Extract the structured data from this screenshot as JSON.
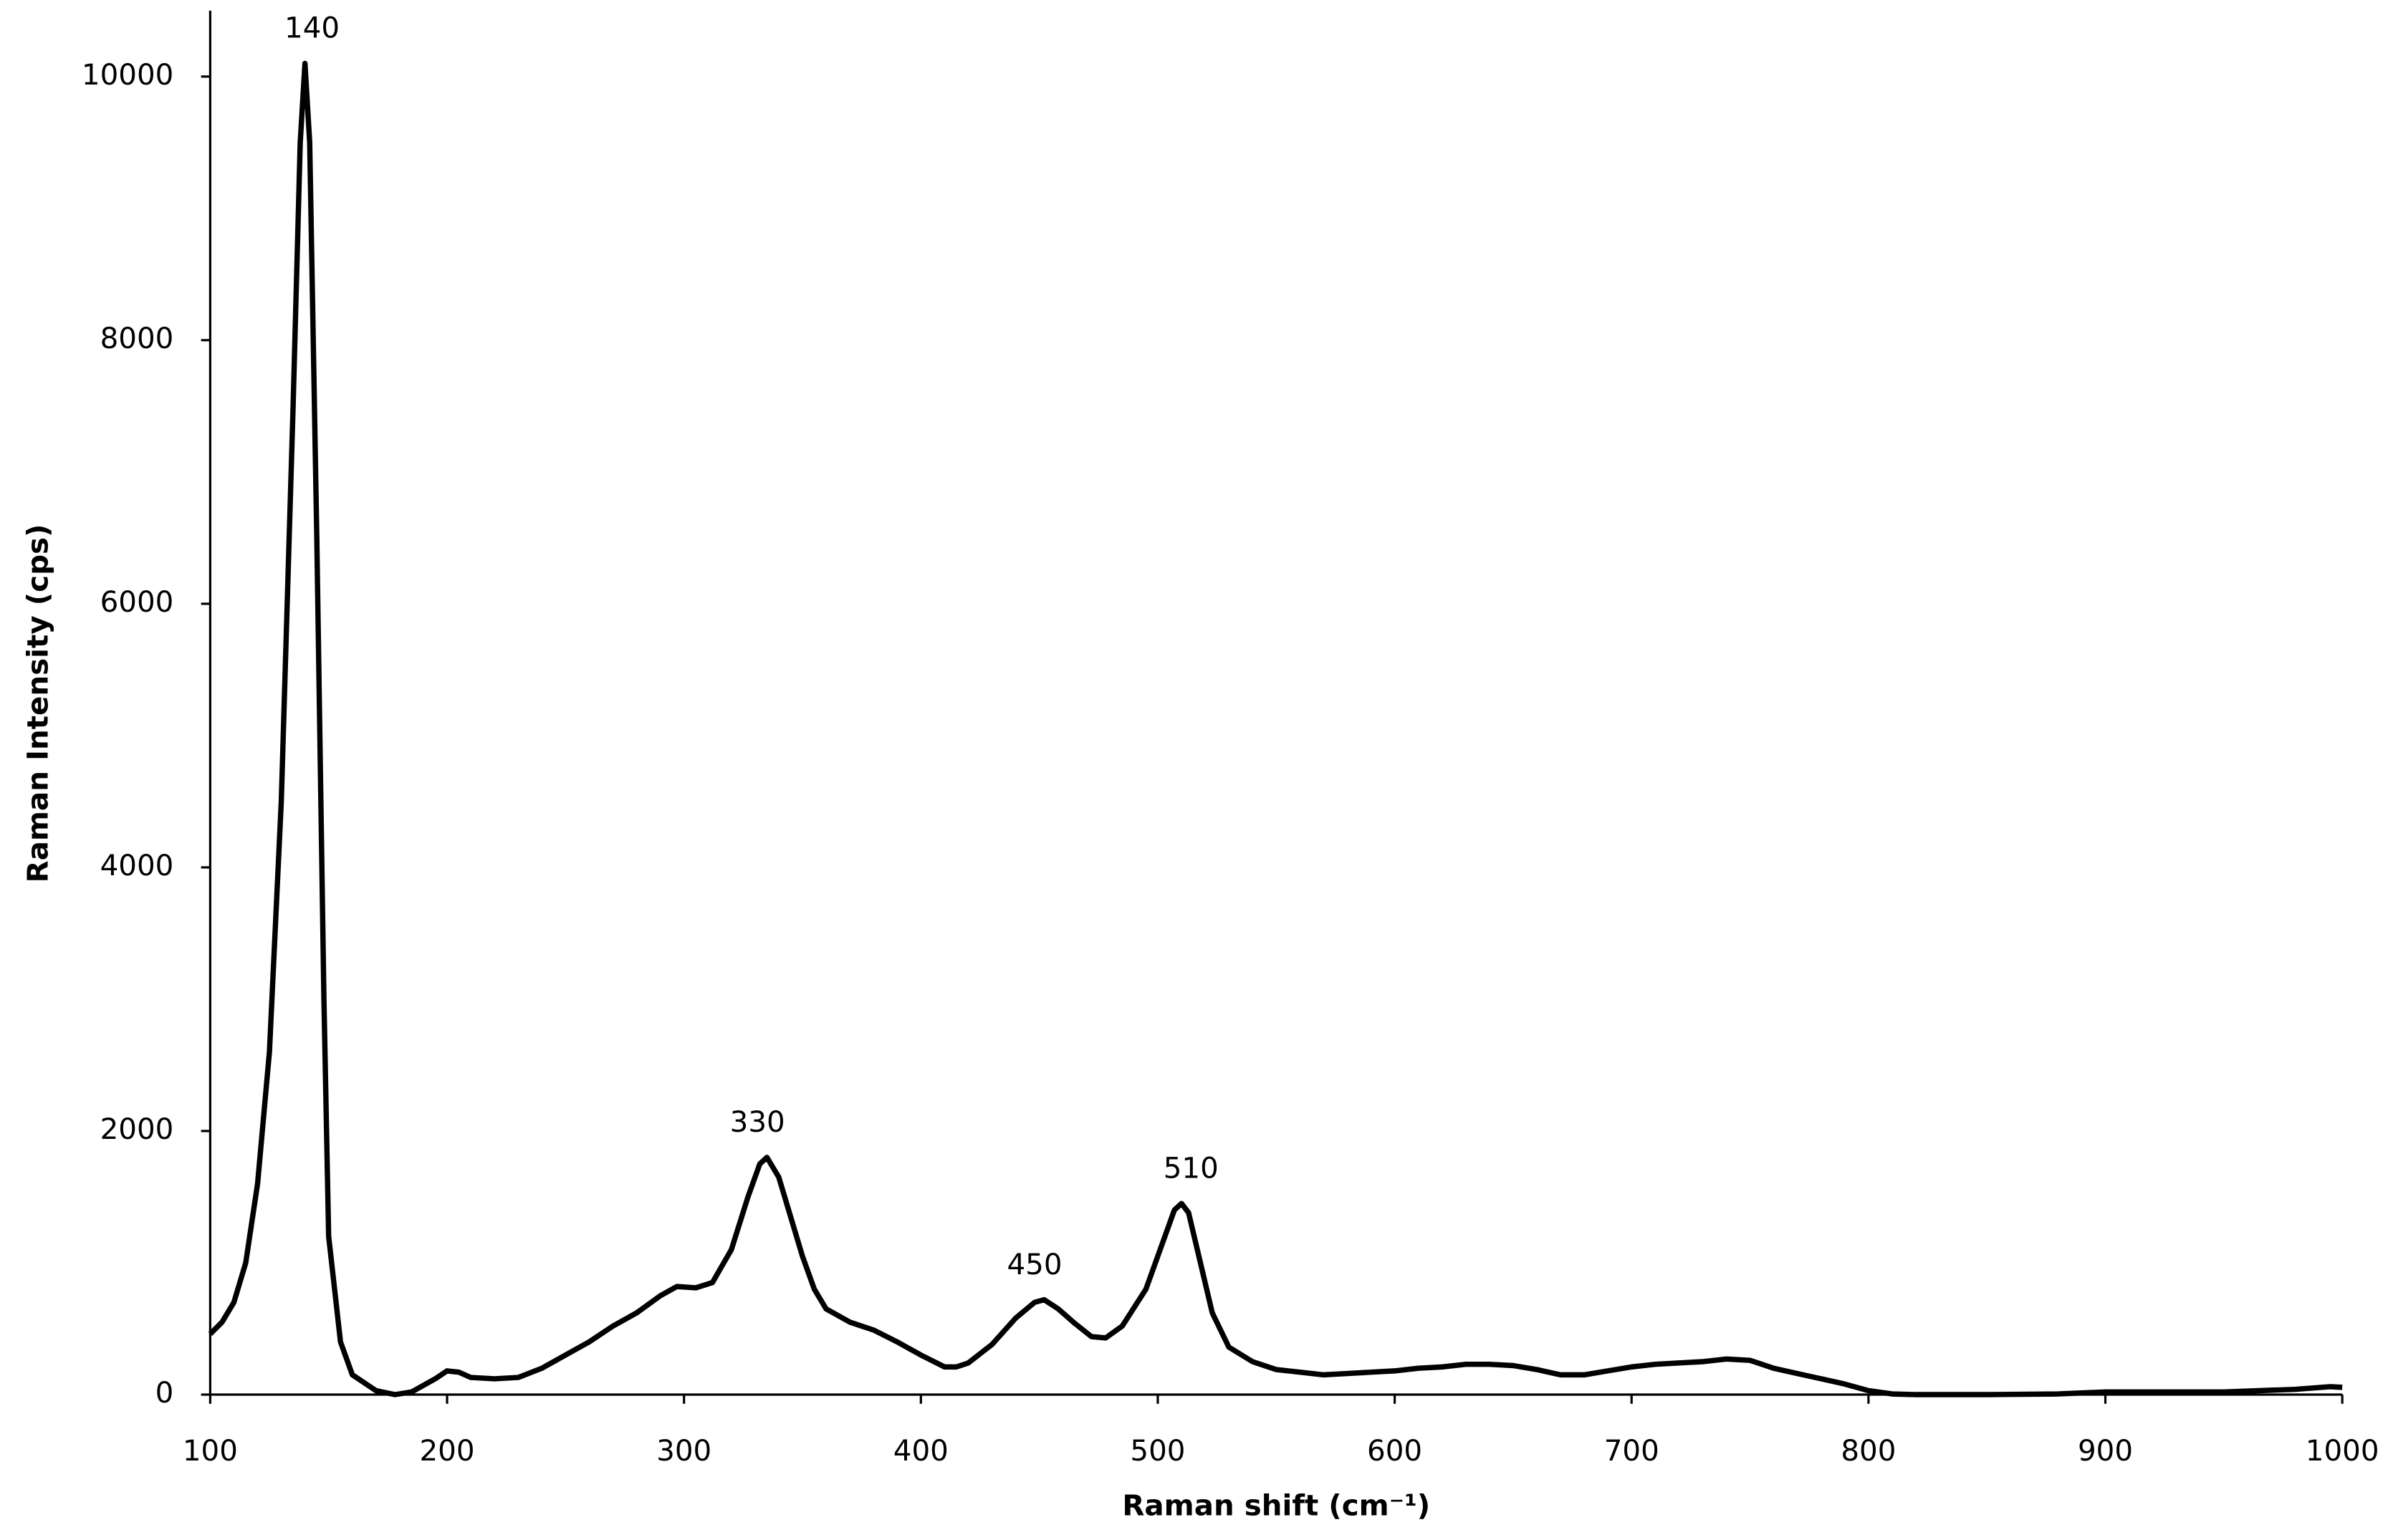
{
  "chart_data": {
    "type": "line",
    "x_label": "Raman shift (cm⁻¹)",
    "y_label": "Raman Intensity (cps)",
    "xlim": [
      100,
      1000
    ],
    "ylim": [
      0,
      10500
    ],
    "xticks": [
      100,
      200,
      300,
      400,
      500,
      600,
      700,
      800,
      900,
      1000
    ],
    "yticks": [
      0,
      2000,
      4000,
      6000,
      8000,
      10000
    ],
    "grid": false,
    "x": [
      100,
      105,
      110,
      115,
      120,
      125,
      130,
      135,
      138,
      140,
      142,
      145,
      148,
      150,
      155,
      160,
      170,
      178,
      185,
      195,
      200,
      205,
      210,
      220,
      230,
      240,
      250,
      260,
      270,
      280,
      290,
      297,
      305,
      312,
      320,
      327,
      332,
      335,
      340,
      345,
      350,
      355,
      360,
      370,
      380,
      390,
      400,
      410,
      415,
      420,
      430,
      440,
      448,
      452,
      458,
      465,
      472,
      478,
      485,
      495,
      502,
      507,
      510,
      513,
      518,
      523,
      530,
      540,
      550,
      560,
      570,
      580,
      590,
      600,
      610,
      620,
      630,
      640,
      650,
      660,
      670,
      680,
      690,
      700,
      710,
      720,
      730,
      740,
      750,
      760,
      770,
      780,
      790,
      800,
      810,
      820,
      850,
      880,
      900,
      920,
      950,
      980,
      995,
      1000
    ],
    "series": [
      {
        "color": "#000000",
        "values": [
          460,
          550,
          700,
          1000,
          1600,
          2600,
          4500,
          7500,
          9500,
          10100,
          9500,
          6500,
          3000,
          1200,
          400,
          150,
          30,
          0,
          20,
          120,
          180,
          170,
          130,
          120,
          130,
          200,
          300,
          400,
          520,
          620,
          750,
          820,
          810,
          850,
          1100,
          1500,
          1750,
          1800,
          1650,
          1350,
          1050,
          800,
          650,
          550,
          490,
          400,
          300,
          210,
          210,
          240,
          380,
          580,
          700,
          720,
          650,
          540,
          440,
          430,
          520,
          800,
          1150,
          1400,
          1450,
          1380,
          1000,
          620,
          360,
          250,
          190,
          170,
          150,
          160,
          170,
          180,
          200,
          210,
          230,
          230,
          220,
          190,
          150,
          150,
          180,
          210,
          230,
          240,
          250,
          270,
          260,
          200,
          160,
          120,
          80,
          30,
          5,
          0,
          0,
          5,
          20,
          20,
          20,
          40,
          60,
          55
        ]
      }
    ],
    "annotations": [
      {
        "text": "140",
        "x": 143,
        "y": 10100
      },
      {
        "text": "330",
        "x": 331,
        "y": 1800
      },
      {
        "text": "450",
        "x": 448,
        "y": 720
      },
      {
        "text": "510",
        "x": 514,
        "y": 1450
      }
    ]
  }
}
